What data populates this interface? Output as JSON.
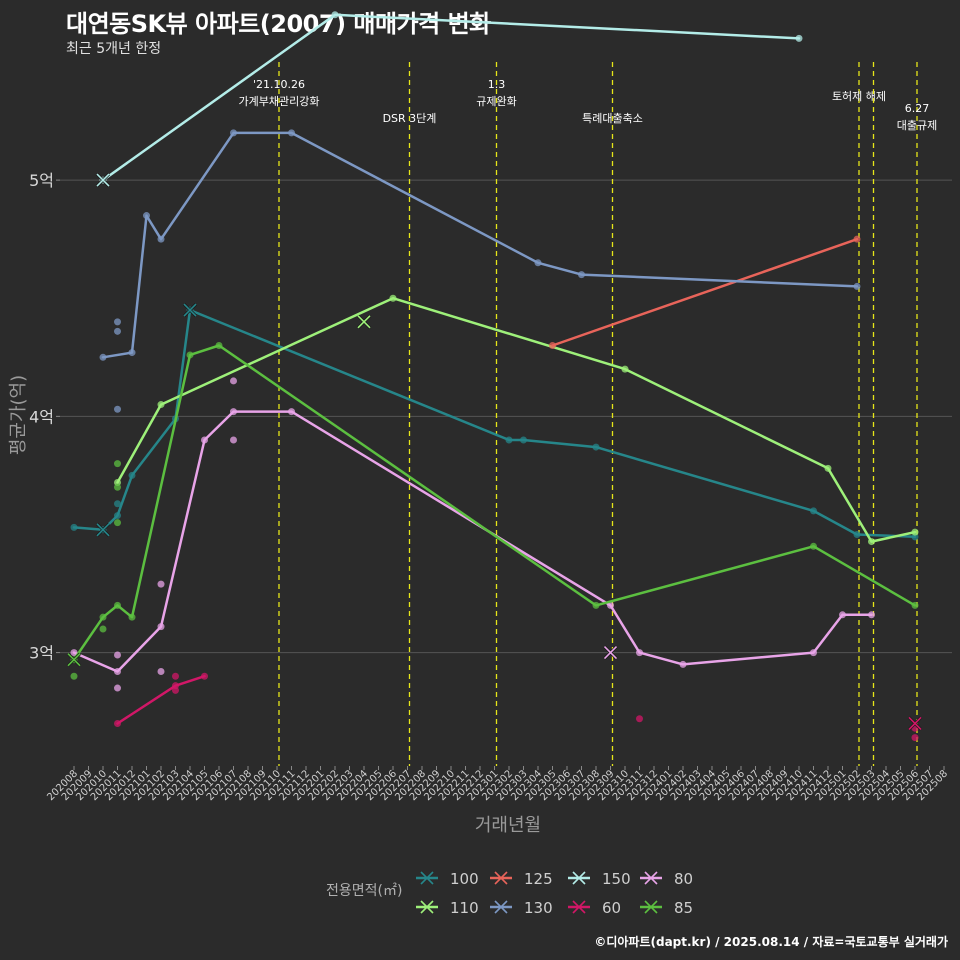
{
  "chart_data": {
    "type": "line",
    "title": "대연동SK뷰 아파트(2007) 매매가격 변화",
    "subtitle": "최근 5개년 한정",
    "xlabel": "거래년월",
    "ylabel": "평균가(억)",
    "source": "©디아파트(dapt.kr) / 2025.08.14 / 자료=국토교통부 실거래가",
    "legend_title": "전용면적(㎡)",
    "ylim": [
      2.52,
      5.5
    ],
    "yticks": [
      {
        "v": 3,
        "label": "3억"
      },
      {
        "v": 4,
        "label": "4억"
      },
      {
        "v": 5,
        "label": "5억"
      }
    ],
    "x_start": "202008",
    "x_months": [
      "202008",
      "202009",
      "202010",
      "202011",
      "202012",
      "202101",
      "202102",
      "202103",
      "202104",
      "202105",
      "202106",
      "202107",
      "202108",
      "202109",
      "202110",
      "202111",
      "202112",
      "202201",
      "202202",
      "202203",
      "202204",
      "202205",
      "202206",
      "202207",
      "202208",
      "202209",
      "202210",
      "202211",
      "202212",
      "202301",
      "202302",
      "202303",
      "202304",
      "202305",
      "202306",
      "202307",
      "202308",
      "202309",
      "202310",
      "202311",
      "202312",
      "202401",
      "202402",
      "202403",
      "202404",
      "202405",
      "202406",
      "202407",
      "202408",
      "202409",
      "202410",
      "202411",
      "202412",
      "202501",
      "202502",
      "202503",
      "202504",
      "202505",
      "202506",
      "202507",
      "202508"
    ],
    "events": [
      {
        "m": 14,
        "lines": [
          "'21.10.26",
          "가계부채관리강화"
        ]
      },
      {
        "m": 23,
        "lines": [
          "DSR 3단계"
        ]
      },
      {
        "m": 29,
        "lines": [
          "1.3",
          "규제완화"
        ]
      },
      {
        "m": 37,
        "lines": [
          "특례대출축소"
        ]
      },
      {
        "m": 54,
        "lines": [
          "토허제 해제"
        ]
      },
      {
        "m": 55,
        "lines": []
      },
      {
        "m": 58,
        "lines": [
          "6.27",
          "대출규제"
        ]
      }
    ],
    "series": [
      {
        "name": "100",
        "color": "#26868a",
        "line": [
          [
            0,
            3.53
          ],
          [
            2,
            3.52
          ],
          [
            3,
            3.58
          ],
          [
            4,
            3.75
          ],
          [
            7,
            3.99
          ],
          [
            8,
            4.45
          ],
          [
            30,
            3.9
          ],
          [
            31,
            3.9
          ],
          [
            36,
            3.87
          ],
          [
            51,
            3.6
          ],
          [
            54,
            3.5
          ],
          [
            58,
            3.49
          ]
        ],
        "points": [
          [
            3,
            3.63
          ]
        ],
        "cross": [
          [
            2,
            3.52
          ],
          [
            8,
            4.45
          ]
        ]
      },
      {
        "name": "110",
        "color": "#9ef07a",
        "line": [
          [
            3,
            3.72
          ],
          [
            6,
            4.05
          ],
          [
            22,
            4.5
          ],
          [
            38,
            4.2
          ],
          [
            52,
            3.78
          ],
          [
            55,
            3.47
          ],
          [
            58,
            3.51
          ]
        ],
        "points": [],
        "cross": [
          [
            20,
            4.4
          ]
        ]
      },
      {
        "name": "125",
        "color": "#e8645a",
        "line": [
          [
            33,
            4.3
          ],
          [
            54,
            4.75
          ]
        ],
        "points": [],
        "cross": []
      },
      {
        "name": "130",
        "color": "#7d98c4",
        "line": [
          [
            2,
            4.25
          ],
          [
            4,
            4.27
          ],
          [
            5,
            4.85
          ],
          [
            6,
            4.75
          ],
          [
            11,
            5.2
          ],
          [
            15,
            5.2
          ],
          [
            32,
            4.65
          ],
          [
            35,
            4.6
          ],
          [
            54,
            4.55
          ]
        ],
        "points": [
          [
            3,
            4.4
          ],
          [
            3,
            4.36
          ],
          [
            3,
            4.03
          ]
        ],
        "cross": []
      },
      {
        "name": "150",
        "color": "#b3ece8",
        "line": [
          [
            2,
            5.0
          ],
          [
            18,
            5.7
          ],
          [
            50,
            5.6
          ]
        ],
        "points": [],
        "cross": [
          [
            2,
            5.0
          ]
        ]
      },
      {
        "name": "60",
        "color": "#d11767",
        "line": [
          [
            3,
            2.7
          ],
          [
            7,
            2.86
          ],
          [
            9,
            2.9
          ]
        ],
        "points": [
          [
            7,
            2.84
          ],
          [
            7,
            2.9
          ],
          [
            39,
            2.72
          ],
          [
            58,
            2.64
          ],
          [
            58,
            2.68
          ]
        ],
        "cross": [
          [
            58,
            2.7
          ]
        ]
      },
      {
        "name": "80",
        "color": "#e8a4e8",
        "line": [
          [
            0,
            3.0
          ],
          [
            3,
            2.92
          ],
          [
            6,
            3.11
          ],
          [
            9,
            3.9
          ],
          [
            11,
            4.02
          ],
          [
            15,
            4.02
          ],
          [
            37,
            3.2
          ],
          [
            39,
            3.0
          ],
          [
            42,
            2.95
          ],
          [
            51,
            3.0
          ],
          [
            53,
            3.16
          ],
          [
            55,
            3.16
          ]
        ],
        "points": [
          [
            3,
            2.99
          ],
          [
            3,
            2.85
          ],
          [
            6,
            2.92
          ],
          [
            6,
            3.29
          ],
          [
            11,
            4.15
          ],
          [
            11,
            3.9
          ]
        ],
        "cross": [
          [
            37,
            3.0
          ]
        ]
      },
      {
        "name": "85",
        "color": "#5cbf40",
        "line": [
          [
            0,
            2.97
          ],
          [
            2,
            3.15
          ],
          [
            3,
            3.2
          ],
          [
            4,
            3.15
          ],
          [
            8,
            4.26
          ],
          [
            10,
            4.3
          ],
          [
            36,
            3.2
          ],
          [
            51,
            3.45
          ],
          [
            58,
            3.2
          ]
        ],
        "points": [
          [
            0,
            2.9
          ],
          [
            2,
            3.1
          ],
          [
            3,
            3.8
          ],
          [
            3,
            3.7
          ],
          [
            3,
            3.55
          ]
        ],
        "cross": [
          [
            0,
            2.97
          ]
        ]
      }
    ]
  }
}
